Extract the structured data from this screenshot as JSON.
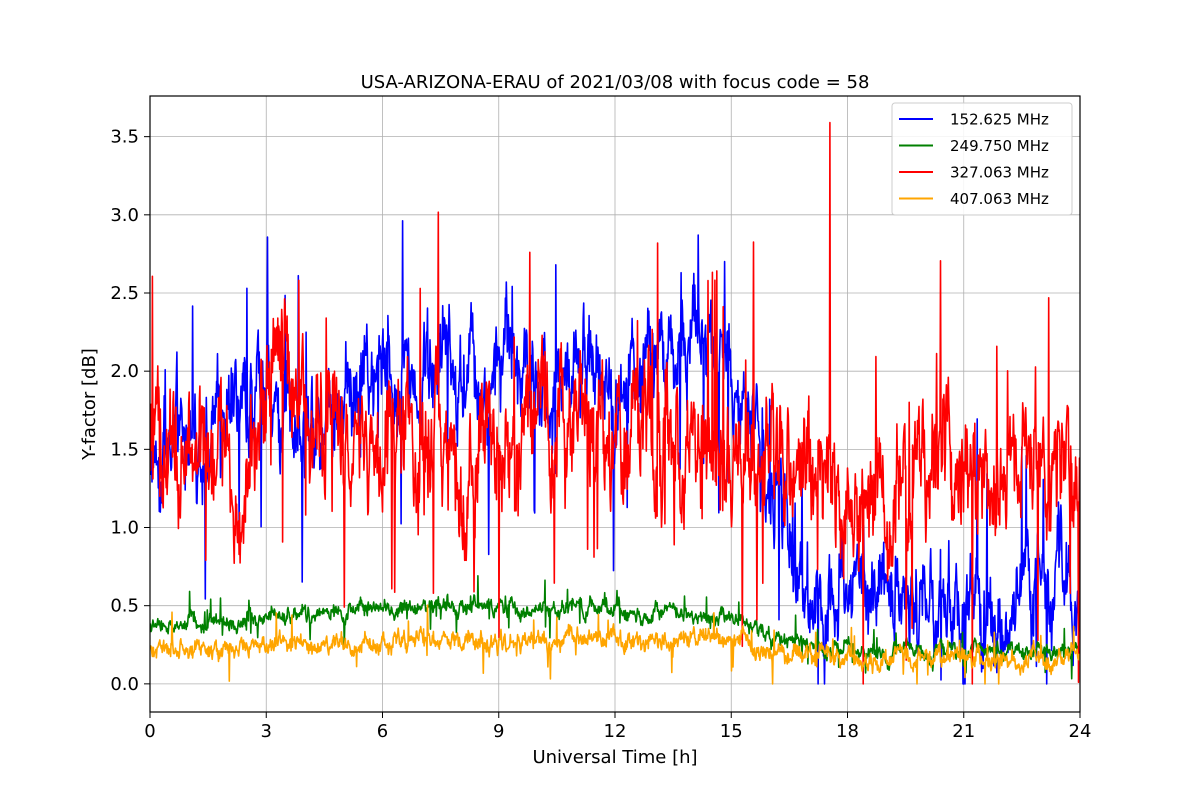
{
  "chart_data": {
    "type": "line",
    "title": "USA-ARIZONA-ERAU of 2021/03/08 with focus code = 58",
    "xlabel": "Universal Time [h]",
    "ylabel": "Y-factor [dB]",
    "xlim": [
      0,
      24
    ],
    "ylim": [
      -0.18,
      3.76
    ],
    "xticks": [
      0,
      3,
      6,
      9,
      12,
      15,
      18,
      21,
      24
    ],
    "xtick_labels": [
      "0",
      "3",
      "6",
      "9",
      "12",
      "15",
      "18",
      "21",
      "24"
    ],
    "yticks": [
      0.0,
      0.5,
      1.0,
      1.5,
      2.0,
      2.5,
      3.0,
      3.5
    ],
    "ytick_labels": [
      "0.0",
      "0.5",
      "1.0",
      "1.5",
      "2.0",
      "2.5",
      "3.0",
      "3.5"
    ],
    "grid": true,
    "legend_position": "top-right",
    "series": [
      {
        "name": "152.625 MHz",
        "color": "#0000ff",
        "x": [
          0,
          0.5,
          1,
          1.5,
          2,
          2.5,
          3,
          3.5,
          4,
          4.5,
          5,
          5.5,
          6,
          6.5,
          7,
          7.5,
          8,
          8.5,
          9,
          9.5,
          10,
          10.5,
          11,
          11.5,
          12,
          12.5,
          13,
          13.5,
          14,
          14.5,
          15,
          15.5,
          16,
          16.5,
          17,
          17.5,
          18,
          18.5,
          19,
          19.5,
          20,
          20.5,
          21,
          21.5,
          22,
          22.5,
          23,
          23.5,
          24
        ],
        "y": [
          1.5,
          1.6,
          1.6,
          1.5,
          1.7,
          1.7,
          1.9,
          1.8,
          1.7,
          1.8,
          1.9,
          1.9,
          2.0,
          2.0,
          1.9,
          2.0,
          2.0,
          1.9,
          2.0,
          2.0,
          2.0,
          2.0,
          2.0,
          2.0,
          2.0,
          2.1,
          2.1,
          2.1,
          2.1,
          2.1,
          2.0,
          1.6,
          1.3,
          0.9,
          0.6,
          0.6,
          0.5,
          0.55,
          0.5,
          0.5,
          0.55,
          0.55,
          0.5,
          0.5,
          0.5,
          0.55,
          0.55,
          0.55,
          0.6
        ],
        "noise": 0.35
      },
      {
        "name": "249.750 MHz",
        "color": "#008000",
        "x": [
          0,
          1,
          2,
          3,
          4,
          5,
          6,
          7,
          8,
          9,
          10,
          11,
          12,
          13,
          14,
          15,
          15.5,
          16,
          17,
          18,
          19,
          20,
          21,
          22,
          23,
          24
        ],
        "y": [
          0.35,
          0.38,
          0.4,
          0.43,
          0.45,
          0.45,
          0.48,
          0.5,
          0.5,
          0.48,
          0.48,
          0.5,
          0.48,
          0.45,
          0.45,
          0.45,
          0.35,
          0.28,
          0.25,
          0.22,
          0.2,
          0.2,
          0.2,
          0.2,
          0.2,
          0.2
        ],
        "noise": 0.06
      },
      {
        "name": "327.063 MHz",
        "color": "#ff0000",
        "x": [
          0,
          0.5,
          1,
          1.5,
          2,
          2.5,
          3,
          3.5,
          4,
          4.5,
          5,
          5.5,
          6,
          6.5,
          7,
          7.5,
          8,
          8.5,
          9,
          9.5,
          10,
          10.5,
          11,
          11.5,
          12,
          12.5,
          13,
          13.5,
          14,
          14.5,
          15,
          15.5,
          16,
          16.5,
          17,
          17.5,
          18,
          18.5,
          19,
          19.5,
          20,
          20.5,
          21,
          21.5,
          22,
          22.5,
          23,
          23.5,
          24
        ],
        "y": [
          1.4,
          1.4,
          1.5,
          1.4,
          1.4,
          1.4,
          1.8,
          1.9,
          1.7,
          1.7,
          1.6,
          1.7,
          1.6,
          1.5,
          1.5,
          1.5,
          1.55,
          1.55,
          1.55,
          1.55,
          1.55,
          1.55,
          1.6,
          1.6,
          1.7,
          1.7,
          1.7,
          1.6,
          1.6,
          1.5,
          1.5,
          1.5,
          1.45,
          1.4,
          1.35,
          1.3,
          1.25,
          1.2,
          1.2,
          1.2,
          1.3,
          1.4,
          1.5,
          1.4,
          1.35,
          1.35,
          1.35,
          1.3,
          1.2
        ],
        "noise": 0.45
      },
      {
        "name": "407.063 MHz",
        "color": "#ffa500",
        "x": [
          0,
          1,
          2,
          3,
          4,
          5,
          6,
          7,
          8,
          9,
          10,
          11,
          12,
          13,
          14,
          15,
          15.5,
          16,
          17,
          18,
          19,
          20,
          21,
          22,
          23,
          24
        ],
        "y": [
          0.22,
          0.22,
          0.24,
          0.25,
          0.25,
          0.25,
          0.27,
          0.27,
          0.27,
          0.27,
          0.28,
          0.28,
          0.28,
          0.28,
          0.27,
          0.27,
          0.24,
          0.2,
          0.18,
          0.17,
          0.15,
          0.15,
          0.15,
          0.15,
          0.15,
          0.15
        ],
        "noise": 0.07
      }
    ],
    "annotations_peaks": [
      {
        "series": "327.063 MHz",
        "x": 17.55,
        "y": 3.59
      },
      {
        "series": "327.063 MHz",
        "x": 13.1,
        "y": 2.82
      },
      {
        "series": "327.063 MHz",
        "x": 9.8,
        "y": 2.76
      },
      {
        "series": "152.625 MHz",
        "x": 13.7,
        "y": 2.63
      }
    ]
  }
}
